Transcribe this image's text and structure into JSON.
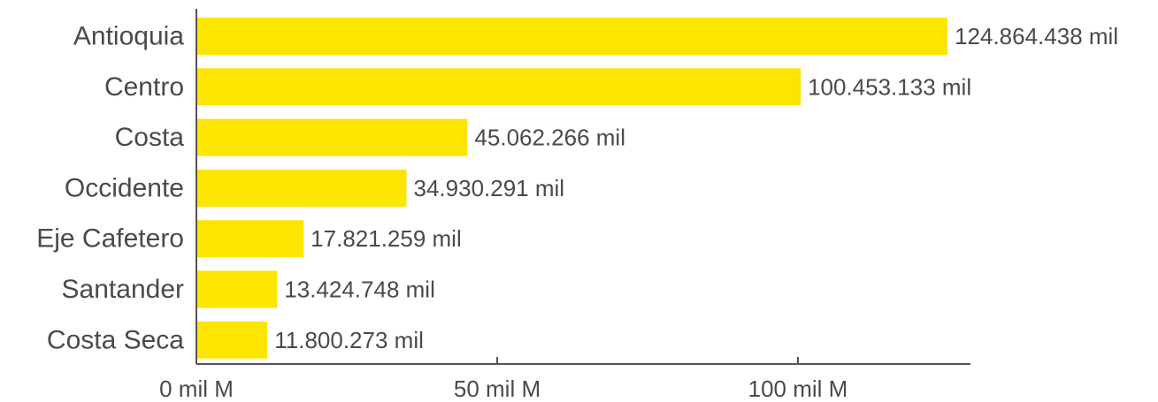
{
  "chart_data": {
    "type": "bar",
    "orientation": "horizontal",
    "categories": [
      "Antioquia",
      "Centro",
      "Costa",
      "Occidente",
      "Eje Cafetero",
      "Santander",
      "Costa Seca"
    ],
    "values": [
      124864438,
      100453133,
      45062266,
      34930291,
      17821259,
      13424748,
      11800273
    ],
    "data_labels": [
      "124.864.438 mil",
      "100.453.133 mil",
      "45.062.266 mil",
      "34.930.291 mil",
      "17.821.259 mil",
      "13.424.748 mil",
      "11.800.273 mil"
    ],
    "x_ticks": [
      {
        "value": 0,
        "label": "0 mil M"
      },
      {
        "value": 50000000,
        "label": "50 mil M"
      },
      {
        "value": 100000000,
        "label": "100 mil M"
      }
    ],
    "xlim": [
      0,
      128000000
    ],
    "bar_color": "#FCE500",
    "title": "",
    "xlabel": "",
    "ylabel": "",
    "grid": false,
    "legend": "none"
  }
}
